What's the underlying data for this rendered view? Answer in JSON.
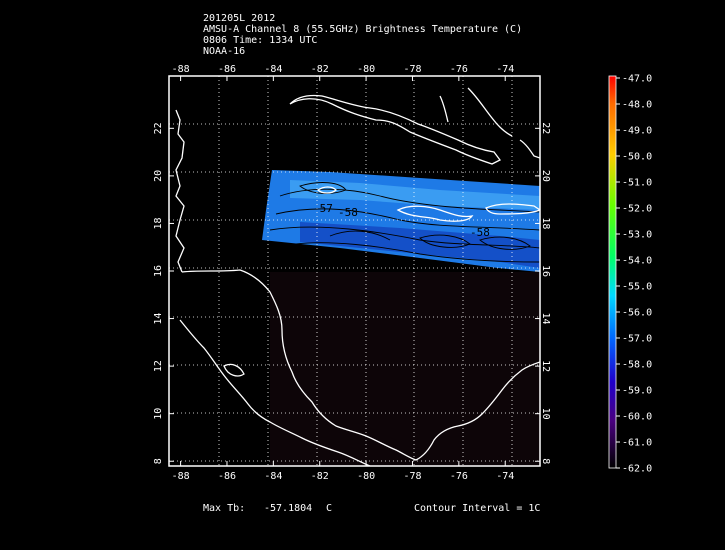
{
  "header": {
    "line1": "201205L 2012",
    "line2": "AMSU-A Channel 8 (55.5GHz) Brightness Temperature (C)",
    "line3": "0806 Time: 1334 UTC",
    "line4": "NOAA-16"
  },
  "axes": {
    "lon_ticks": [
      "-88",
      "-86",
      "-84",
      "-82",
      "-80",
      "-78",
      "-76",
      "-74"
    ],
    "lat_ticks": [
      "22",
      "20",
      "18",
      "16",
      "14",
      "12",
      "10",
      "8"
    ],
    "lon_range": [
      -88.5,
      -72.5
    ],
    "lat_range": [
      7.8,
      24.2
    ]
  },
  "contour_labels": [
    "-57",
    "-58",
    "-58"
  ],
  "colorbar": {
    "labels": [
      "-47.0",
      "-48.0",
      "-49.0",
      "-50.0",
      "-51.0",
      "-52.0",
      "-53.0",
      "-54.0",
      "-55.0",
      "-56.0",
      "-57.0",
      "-58.0",
      "-59.0",
      "-60.0",
      "-61.0",
      "-62.0"
    ]
  },
  "footer": {
    "max_label": "Max Tb:",
    "max_value": "-57.1804",
    "max_unit": "C",
    "interval": "Contour Interval = 1C"
  }
}
